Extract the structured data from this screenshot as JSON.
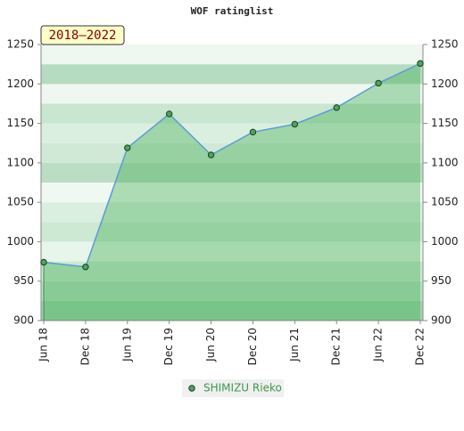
{
  "chart_data": {
    "type": "line",
    "title": "WOF ratinglist",
    "annotation": "2018–2022",
    "categories": [
      "Jun 18",
      "Dec 18",
      "Jun 19",
      "Dec 19",
      "Jun 20",
      "Dec 20",
      "Jun 21",
      "Dec 21",
      "Jun 22",
      "Dec 22"
    ],
    "series": [
      {
        "name": "SHIMIZU Rieko",
        "color": "#5b9bd5",
        "values": [
          974,
          968,
          1119,
          1162,
          1110,
          1139,
          1149,
          1170,
          1201,
          1226
        ]
      }
    ],
    "ylim": [
      900,
      1250
    ],
    "yticks": [
      900,
      950,
      1000,
      1050,
      1100,
      1150,
      1200,
      1250
    ],
    "grid": true
  }
}
